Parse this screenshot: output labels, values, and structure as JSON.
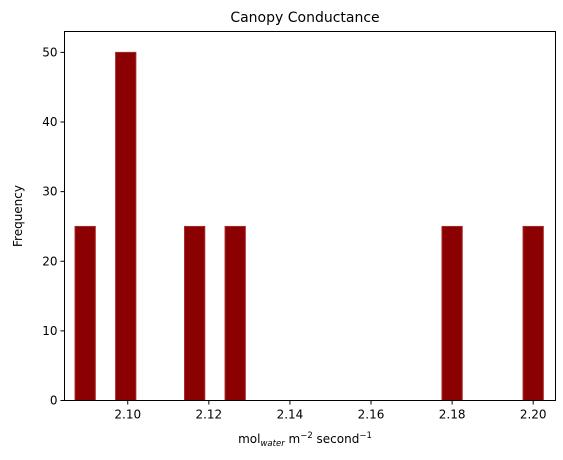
{
  "chart_data": {
    "type": "bar",
    "title": "Canopy Conductance",
    "xlabel": {
      "base": "mol",
      "subscript": "water",
      "middle": " m",
      "superscript1": "−2",
      "after": " second",
      "superscript2": "−1"
    },
    "ylabel": "Frequency",
    "xlim": [
      2.0844,
      2.2055
    ],
    "ylim": [
      0,
      53
    ],
    "x_ticks": [
      2.1,
      2.12,
      2.14,
      2.16,
      2.18,
      2.2
    ],
    "x_tick_labels": [
      "2.10",
      "2.12",
      "2.14",
      "2.16",
      "2.18",
      "2.20"
    ],
    "y_ticks": [
      0,
      10,
      20,
      30,
      40,
      50
    ],
    "y_tick_labels": [
      "0",
      "10",
      "20",
      "30",
      "40",
      "50"
    ],
    "bar_color": "#8b0000",
    "bar_edge_color": "#a52a2a",
    "bins": [
      {
        "start": 2.087,
        "end": 2.092,
        "count": 25
      },
      {
        "start": 2.097,
        "end": 2.102,
        "count": 50
      },
      {
        "start": 2.114,
        "end": 2.119,
        "count": 25
      },
      {
        "start": 2.124,
        "end": 2.129,
        "count": 25
      },
      {
        "start": 2.1775,
        "end": 2.1825,
        "count": 25
      },
      {
        "start": 2.1975,
        "end": 2.2025,
        "count": 25
      }
    ],
    "grid": false,
    "legend": "none"
  }
}
